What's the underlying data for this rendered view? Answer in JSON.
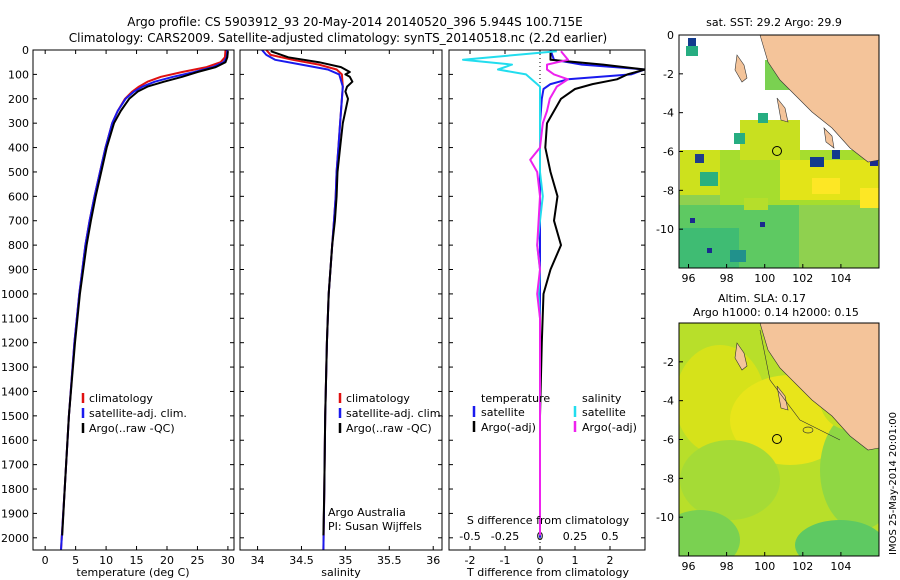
{
  "header": {
    "line1": "Argo profile: CS 5903912_93 20-May-2014 20140520_396 5.944S 100.715E",
    "line2": "Climatology: CARS2009. Satellite-adjusted climatology: synTS_20140518.nc (2.2d earlier)"
  },
  "colors": {
    "climatology": "#e01010",
    "satellite": "#1a1aee",
    "argo": "#000000",
    "sal_satellite": "#22ddee",
    "sal_argo": "#ee22ee",
    "land": "#f4c49a"
  },
  "chart_data": [
    {
      "type": "line",
      "id": "temperature",
      "xlabel": "temperature (deg C)",
      "ylabel": "",
      "xlim": [
        -2,
        31
      ],
      "ylim": [
        2050,
        0
      ],
      "xticks": [
        0,
        5,
        10,
        15,
        20,
        25,
        30
      ],
      "yticks": [
        0,
        100,
        200,
        300,
        400,
        500,
        600,
        700,
        800,
        900,
        1000,
        1100,
        1200,
        1300,
        1400,
        1500,
        1600,
        1700,
        1800,
        1900,
        2000
      ],
      "legend": [
        "climatology",
        "satellite-adj. clim.",
        "Argo(..raw -QC)"
      ],
      "legend_loc": "lower-center",
      "series": [
        {
          "name": "climatology",
          "depth": [
            0,
            30,
            50,
            70,
            90,
            110,
            130,
            150,
            170,
            200,
            250,
            300,
            400,
            500,
            600,
            700,
            800,
            1000,
            1200,
            1500,
            1800,
            2050
          ],
          "values": [
            29.6,
            29.5,
            28.8,
            26.5,
            22.5,
            19.0,
            16.8,
            15.4,
            14.3,
            13.1,
            11.9,
            11.0,
            9.9,
            9.0,
            8.1,
            7.3,
            6.6,
            5.6,
            4.8,
            3.9,
            3.2,
            2.6
          ]
        },
        {
          "name": "satellite-adj. clim.",
          "depth": [
            0,
            30,
            50,
            70,
            90,
            110,
            130,
            150,
            170,
            200,
            250,
            300,
            400,
            500,
            600,
            700,
            800,
            1000,
            1200,
            1500,
            1800,
            2050
          ],
          "values": [
            29.9,
            29.8,
            29.3,
            27.5,
            24.5,
            21.0,
            18.0,
            16.0,
            14.6,
            13.2,
            11.9,
            11.0,
            9.9,
            9.0,
            8.1,
            7.3,
            6.6,
            5.6,
            4.8,
            3.9,
            3.2,
            2.6
          ]
        },
        {
          "name": "Argo(..raw -QC)",
          "depth": [
            5,
            30,
            50,
            70,
            90,
            110,
            130,
            150,
            170,
            200,
            250,
            300,
            400,
            500,
            600,
            700,
            800,
            1000,
            1200,
            1500,
            1800,
            1990
          ],
          "values": [
            30.0,
            29.9,
            29.6,
            28.0,
            25.0,
            22.5,
            19.5,
            16.8,
            15.2,
            13.8,
            12.4,
            11.3,
            10.1,
            9.2,
            8.3,
            7.5,
            6.8,
            5.7,
            4.9,
            3.9,
            3.2,
            2.8
          ]
        }
      ]
    },
    {
      "type": "line",
      "id": "salinity",
      "xlabel": "salinity",
      "xlim": [
        33.8,
        36.1
      ],
      "ylim": [
        2050,
        0
      ],
      "xticks": [
        34,
        34.5,
        35,
        35.5,
        36
      ],
      "legend": [
        "climatology",
        "satellite-adj. clim.",
        "Argo(..raw -QC)"
      ],
      "legend_loc": "lower-center",
      "annotation": [
        "Argo Australia",
        "PI: Susan Wijffels"
      ],
      "series": [
        {
          "name": "climatology",
          "depth": [
            0,
            20,
            40,
            60,
            80,
            100,
            150,
            200,
            300,
            400,
            500,
            600,
            700,
            800,
            1000,
            1200,
            1500,
            1800,
            2050
          ],
          "values": [
            34.1,
            34.15,
            34.4,
            34.7,
            34.9,
            34.96,
            34.97,
            34.96,
            34.94,
            34.92,
            34.9,
            34.89,
            34.87,
            34.85,
            34.81,
            34.79,
            34.77,
            34.76,
            34.75
          ]
        },
        {
          "name": "satellite-adj. clim.",
          "depth": [
            0,
            20,
            40,
            60,
            80,
            100,
            150,
            200,
            300,
            400,
            500,
            600,
            700,
            800,
            1000,
            1200,
            1500,
            1800,
            2050
          ],
          "values": [
            34.05,
            34.1,
            34.2,
            34.5,
            34.8,
            34.93,
            34.97,
            34.96,
            34.94,
            34.92,
            34.9,
            34.89,
            34.87,
            34.85,
            34.81,
            34.79,
            34.77,
            34.76,
            34.75
          ]
        },
        {
          "name": "Argo(..raw -QC)",
          "depth": [
            5,
            30,
            50,
            70,
            90,
            100,
            110,
            130,
            150,
            170,
            200,
            250,
            300,
            400,
            500,
            600,
            700,
            800,
            1000,
            1200,
            1500,
            1800,
            1990
          ],
          "values": [
            34.15,
            34.35,
            34.7,
            34.95,
            35.05,
            35.0,
            35.05,
            35.08,
            35.02,
            35.0,
            35.03,
            35.0,
            34.97,
            34.94,
            34.91,
            34.9,
            34.88,
            34.85,
            34.81,
            34.79,
            34.77,
            34.76,
            34.75
          ]
        }
      ]
    },
    {
      "type": "line",
      "id": "difference",
      "xlabel": "T difference from climatology",
      "top_label": "S difference from climatology",
      "xlim": [
        -2.6,
        3.0
      ],
      "ylim": [
        2050,
        0
      ],
      "xticks": [
        -2,
        -1,
        0,
        1,
        2
      ],
      "top_ticks": [
        "-0.5",
        "-0.25",
        "0",
        "0.25",
        "0.5"
      ],
      "top_tick_values": [
        -0.5,
        -0.25,
        0,
        0.25,
        0.5
      ],
      "s_scale": 4,
      "legend_temperature": [
        "temperature",
        "satellite",
        "Argo(-adj)"
      ],
      "legend_salinity": [
        "salinity",
        "satellite",
        "Argo(-adj)"
      ],
      "series": [
        {
          "name": "temperature satellite",
          "depth": [
            0,
            40,
            60,
            80,
            100,
            120,
            140,
            160,
            200,
            300,
            500,
            1000,
            2000
          ],
          "values": [
            0.3,
            0.4,
            1.2,
            3.0,
            2.6,
            0.8,
            0.3,
            0.1,
            0.05,
            0.0,
            0.0,
            0.0,
            0.0
          ]
        },
        {
          "name": "temperature Argo(-adj)",
          "depth": [
            5,
            40,
            60,
            80,
            100,
            120,
            140,
            160,
            200,
            250,
            300,
            400,
            500,
            600,
            700,
            800,
            900,
            1000,
            1200,
            1500,
            1800,
            1990
          ],
          "values": [
            0.3,
            0.3,
            1.8,
            3.0,
            2.5,
            2.2,
            1.5,
            1.0,
            0.6,
            0.4,
            0.2,
            0.15,
            0.3,
            0.5,
            0.4,
            0.6,
            0.3,
            0.1,
            0.05,
            0.0,
            0.0,
            0.0
          ]
        },
        {
          "name": "salinity satellite",
          "depth": [
            5,
            40,
            60,
            80,
            100,
            150,
            200,
            300,
            400,
            500,
            600,
            700,
            800,
            900,
            1000,
            1100,
            1200,
            1500,
            1990
          ],
          "values": [
            0.12,
            -0.55,
            -0.2,
            -0.3,
            -0.1,
            0.0,
            0.0,
            0.0,
            0.0,
            0.0,
            0.02,
            0.0,
            -0.02,
            0.0,
            -0.01,
            0.0,
            0.0,
            0.0,
            0.0
          ]
        },
        {
          "name": "salinity Argo(-adj)",
          "depth": [
            5,
            40,
            60,
            80,
            100,
            120,
            150,
            200,
            250,
            300,
            400,
            450,
            500,
            600,
            700,
            800,
            900,
            1000,
            1100,
            1200,
            1500,
            1990
          ],
          "values": [
            0.15,
            0.2,
            0.05,
            0.05,
            0.1,
            0.2,
            0.12,
            0.07,
            0.05,
            0.02,
            0.0,
            -0.07,
            -0.02,
            0.0,
            -0.01,
            -0.02,
            0.0,
            -0.02,
            0.0,
            0.0,
            0.0,
            0.0
          ]
        }
      ]
    },
    {
      "type": "heatmap",
      "id": "sst_map",
      "title": "sat. SST: 29.2 Argo: 29.9",
      "xlim": [
        95.5,
        106
      ],
      "ylim": [
        -12,
        0
      ],
      "xticks": [
        96,
        98,
        100,
        102,
        104
      ],
      "yticks": [
        0,
        -2,
        -4,
        -6,
        -8,
        -10
      ],
      "marker": {
        "lon": 100.715,
        "lat": -5.944
      }
    },
    {
      "type": "heatmap",
      "id": "sla_map",
      "title": "Altim. SLA: 0.17",
      "subtitle": "Argo h1000: 0.14 h2000: 0.15",
      "xlim": [
        95.5,
        106
      ],
      "ylim": [
        -12,
        0
      ],
      "xticks": [
        96,
        98,
        100,
        102,
        104
      ],
      "yticks": [
        -2,
        -4,
        -6,
        -8,
        -10
      ],
      "marker": {
        "lon": 100.715,
        "lat": -5.944
      }
    }
  ],
  "credit": "IMOS 25-May-2014 20:01:00"
}
